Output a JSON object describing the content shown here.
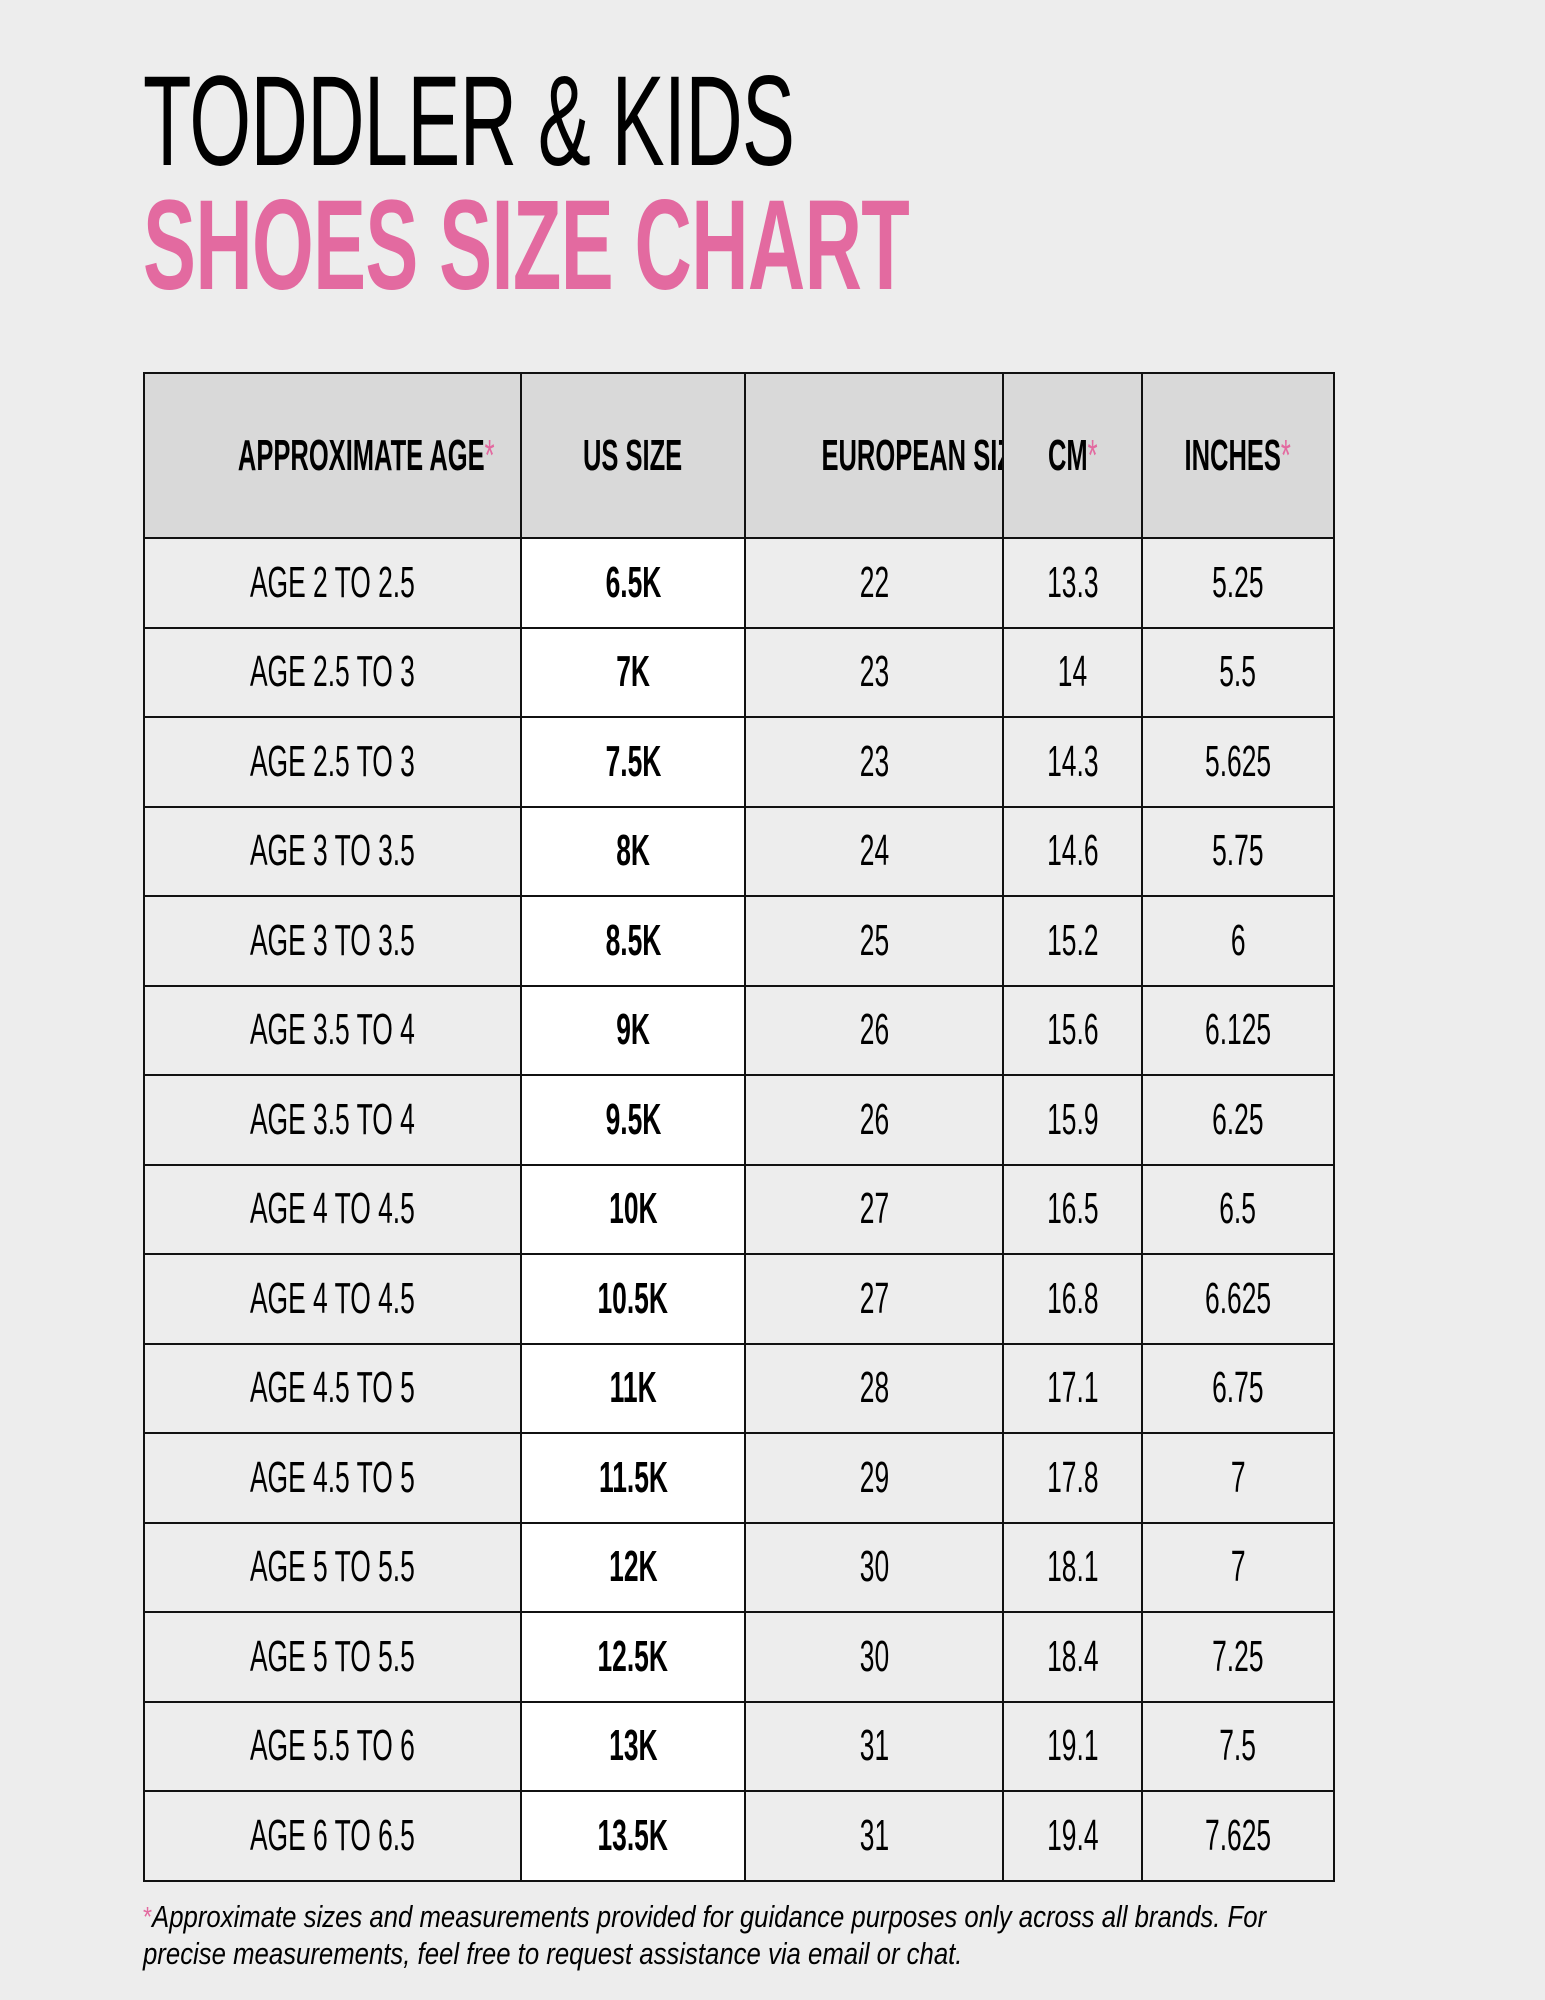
{
  "title": {
    "line1": "TODDLER & KIDS",
    "line2": "SHOES SIZE CHART"
  },
  "colors": {
    "accent": "#e36aa0",
    "background": "#ededed",
    "header_bg": "#d9d9d9",
    "us_column_bg": "#ffffff"
  },
  "table": {
    "headers": [
      {
        "label": "APPROXIMATE AGE",
        "asterisk": "*"
      },
      {
        "label": "US SIZE",
        "asterisk": ""
      },
      {
        "label": "EUROPEAN SIZE",
        "asterisk": ""
      },
      {
        "label": "CM",
        "asterisk": "*"
      },
      {
        "label": "INCHES",
        "asterisk": "*"
      }
    ],
    "rows": [
      [
        "AGE 2 TO 2.5",
        "6.5K",
        "22",
        "13.3",
        "5.25"
      ],
      [
        "AGE 2.5 TO 3",
        "7K",
        "23",
        "14",
        "5.5"
      ],
      [
        "AGE 2.5 TO 3",
        "7.5K",
        "23",
        "14.3",
        "5.625"
      ],
      [
        "AGE 3 TO 3.5",
        "8K",
        "24",
        "14.6",
        "5.75"
      ],
      [
        "AGE 3 TO 3.5",
        "8.5K",
        "25",
        "15.2",
        "6"
      ],
      [
        "AGE 3.5 TO 4",
        "9K",
        "26",
        "15.6",
        "6.125"
      ],
      [
        "AGE 3.5 TO 4",
        "9.5K",
        "26",
        "15.9",
        "6.25"
      ],
      [
        "AGE 4 TO 4.5",
        "10K",
        "27",
        "16.5",
        "6.5"
      ],
      [
        "AGE 4 TO 4.5",
        "10.5K",
        "27",
        "16.8",
        "6.625"
      ],
      [
        "AGE 4.5 TO 5",
        "11K",
        "28",
        "17.1",
        "6.75"
      ],
      [
        "AGE 4.5 TO 5",
        "11.5K",
        "29",
        "17.8",
        "7"
      ],
      [
        "AGE 5 TO 5.5",
        "12K",
        "30",
        "18.1",
        "7"
      ],
      [
        "AGE 5 TO 5.5",
        "12.5K",
        "30",
        "18.4",
        "7.25"
      ],
      [
        "AGE 5.5 TO 6",
        "13K",
        "31",
        "19.1",
        "7.5"
      ],
      [
        "AGE 6 TO 6.5",
        "13.5K",
        "31",
        "19.4",
        "7.625"
      ]
    ]
  },
  "footer": {
    "asterisk": "*",
    "text": "Approximate sizes and measurements provided for guidance purposes only across all brands. For precise measurements, feel free to request assistance via email or chat."
  }
}
